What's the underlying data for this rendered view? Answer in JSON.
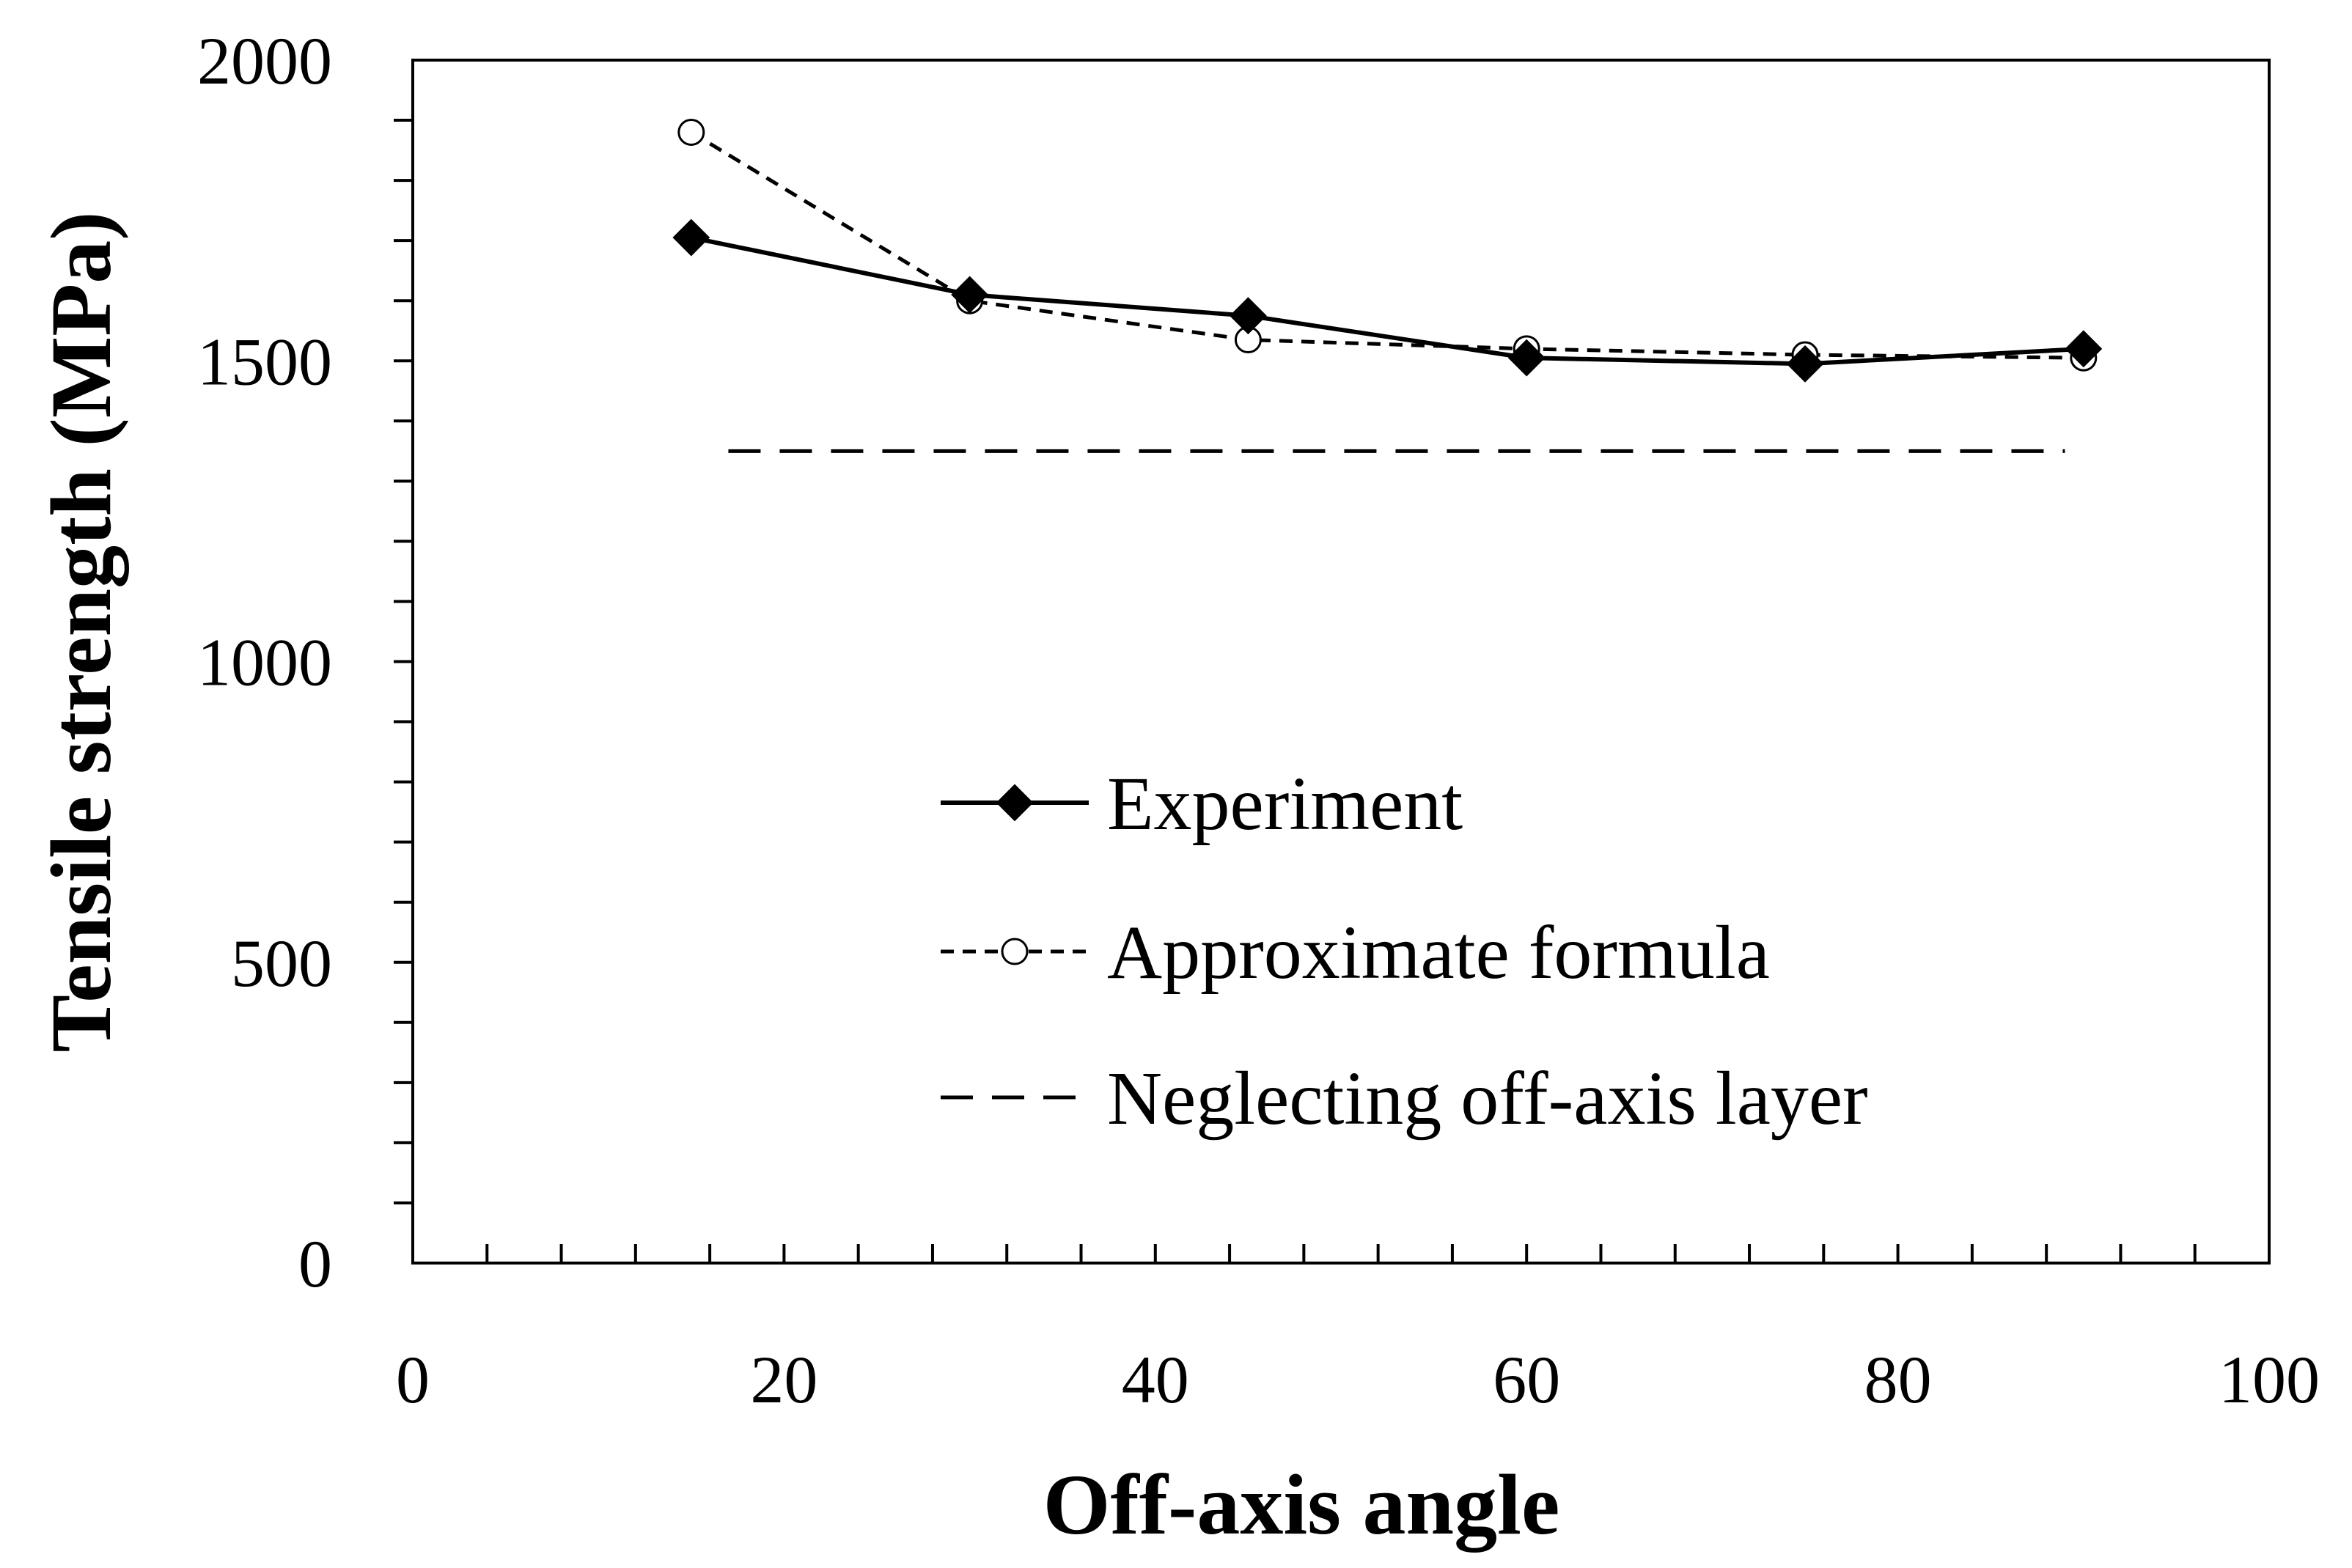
{
  "chart_data": {
    "type": "line",
    "title": "",
    "xlabel": "Off-axis angle",
    "ylabel": "Tensile strength (MPa)",
    "xlim": [
      0,
      100
    ],
    "ylim": [
      0,
      2000
    ],
    "x_major_ticks": [
      0,
      20,
      40,
      60,
      80,
      100
    ],
    "x_minor_step": 4,
    "y_major_ticks": [
      0,
      500,
      1000,
      1500,
      2000
    ],
    "y_minor_step": 100,
    "x_tick_labels": [
      "0",
      "20",
      "40",
      "60",
      "80",
      "100"
    ],
    "y_tick_labels": [
      "0",
      "500",
      "1000",
      "1500",
      "2000"
    ],
    "grid": false,
    "legend_position": "center-right",
    "series": [
      {
        "name": "Experiment",
        "style": "solid",
        "marker": "filled-diamond",
        "color": "#000000",
        "x": [
          15,
          30,
          45,
          60,
          75,
          90
        ],
        "y": [
          1705,
          1610,
          1575,
          1505,
          1495,
          1520
        ]
      },
      {
        "name": "Approximate formula",
        "style": "short-dash",
        "marker": "open-circle",
        "color": "#000000",
        "x": [
          15,
          30,
          45,
          60,
          75,
          90
        ],
        "y": [
          1880,
          1600,
          1535,
          1520,
          1510,
          1505
        ]
      },
      {
        "name": "Neglecting off-axis layer",
        "style": "long-dash",
        "marker": "none",
        "color": "#000000",
        "x": [
          17,
          89
        ],
        "y": [
          1350,
          1350
        ]
      }
    ]
  }
}
